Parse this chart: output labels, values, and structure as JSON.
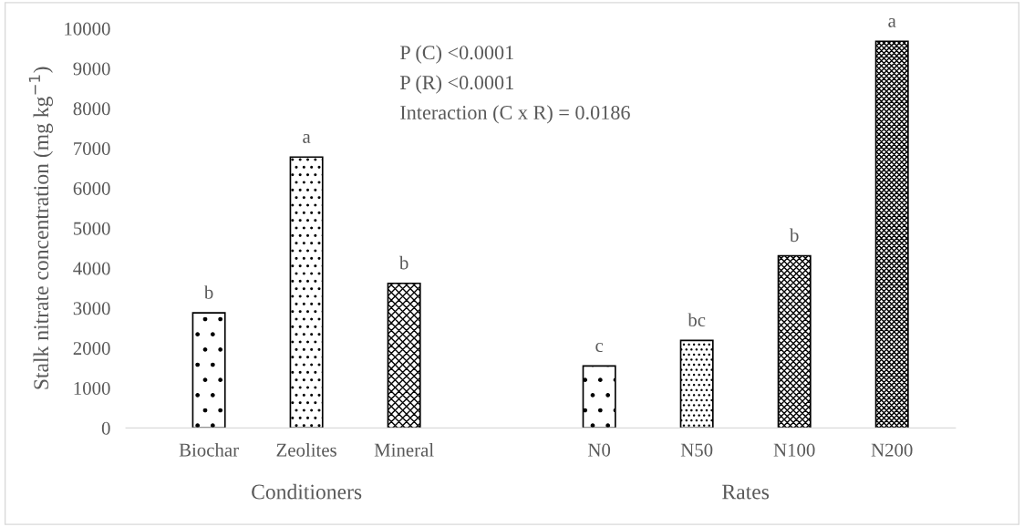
{
  "chart_data": {
    "type": "bar",
    "ylabel": "Stalk nitrate concentration (mg kg$^{−1}$)",
    "categories": [
      "Biochar",
      "Zeolites",
      "Mineral",
      null,
      "N0",
      "N50",
      "N100",
      "N200"
    ],
    "values": [
      2880,
      6780,
      3620,
      null,
      1550,
      2190,
      4310,
      9680
    ],
    "colors": [
      "#000000",
      "#000000",
      "#000000",
      null,
      "#000000",
      "#000000",
      "#000000",
      "#000000"
    ],
    "value_labels": [
      "b",
      "a",
      "b",
      null,
      "c",
      "bc",
      "b",
      "a"
    ],
    "ylim": [
      0,
      10000
    ],
    "yticks": [
      0,
      1000,
      2000,
      3000,
      4000,
      5000,
      6000,
      7000,
      8000,
      9000,
      10000
    ],
    "grid": false,
    "annotations": [
      "P (C) <0.0001",
      "P (R) <0.0001",
      "Interaction (C x R) = 0.0186",
      "Conditioners",
      "Rates"
    ]
  }
}
